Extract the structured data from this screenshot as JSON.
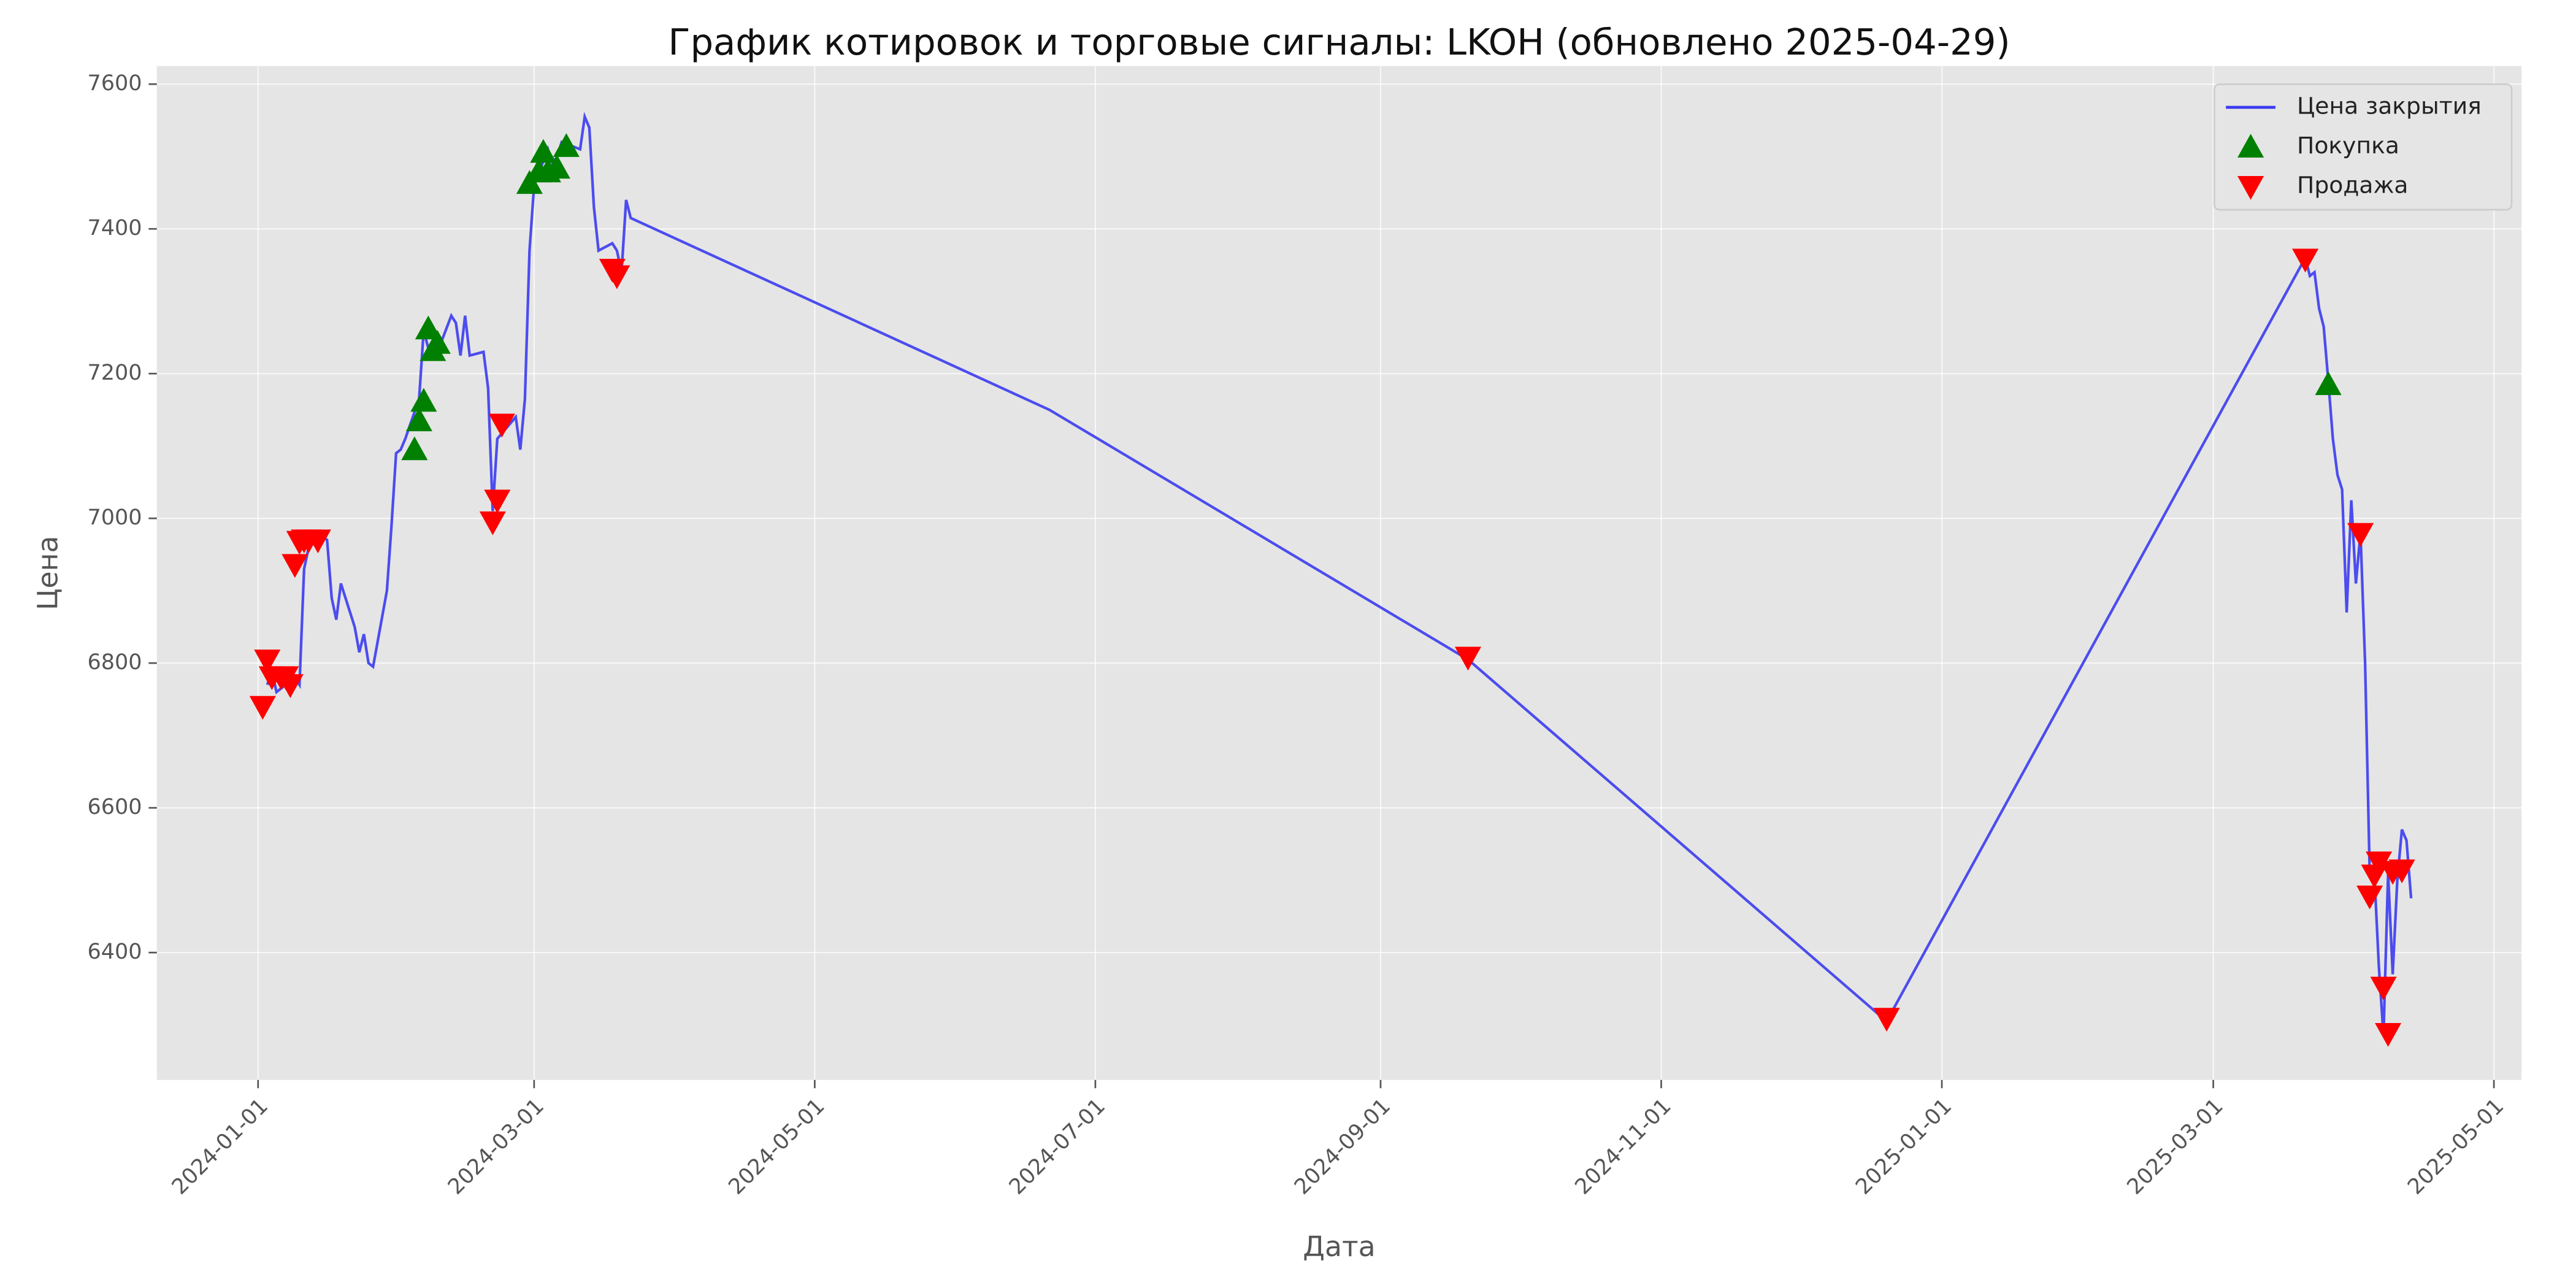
{
  "chart_data": {
    "type": "line",
    "title": "График котировок и торговые сигналы: LKOH (обновлено 2025-04-29)",
    "xlabel": "Дата",
    "ylabel": "Цена",
    "xlim": [
      "2023-12-10",
      "2025-05-07"
    ],
    "xticks": [
      "2024-01-01",
      "2024-03-01",
      "2024-05-01",
      "2024-07-01",
      "2024-09-01",
      "2024-11-01",
      "2025-01-01",
      "2025-03-01",
      "2025-05-01"
    ],
    "ylim": [
      6224,
      7625
    ],
    "yticks": [
      6400,
      6600,
      6800,
      7000,
      7200,
      7400,
      7600
    ],
    "grid": true,
    "legend": "upper right",
    "series": [
      {
        "name": "Цена закрытия",
        "type": "line",
        "color": "#3b3bf0",
        "x": [
          "2024-01-03",
          "2024-01-04",
          "2024-01-05",
          "2024-01-08",
          "2024-01-09",
          "2024-01-10",
          "2024-01-11",
          "2024-01-12",
          "2024-01-15",
          "2024-01-16",
          "2024-01-17",
          "2024-01-18",
          "2024-01-19",
          "2024-01-22",
          "2024-01-23",
          "2024-01-24",
          "2024-01-25",
          "2024-01-26",
          "2024-01-29",
          "2024-01-30",
          "2024-01-31",
          "2024-02-01",
          "2024-02-02",
          "2024-02-05",
          "2024-02-06",
          "2024-02-07",
          "2024-02-08",
          "2024-02-09",
          "2024-02-12",
          "2024-02-13",
          "2024-02-14",
          "2024-02-15",
          "2024-02-16",
          "2024-02-19",
          "2024-02-20",
          "2024-02-21",
          "2024-02-22",
          "2024-02-26",
          "2024-02-27",
          "2024-02-28",
          "2024-02-29",
          "2024-03-01",
          "2024-03-04",
          "2024-03-05",
          "2024-03-06",
          "2024-03-07",
          "2024-03-11",
          "2024-03-12",
          "2024-03-13",
          "2024-03-14",
          "2024-03-15",
          "2024-03-18",
          "2024-03-19",
          "2024-03-20",
          "2024-03-21",
          "2024-03-22",
          "2024-06-21",
          "2024-09-20",
          "2024-12-20",
          "2025-03-21",
          "2025-03-22",
          "2025-03-23",
          "2025-03-24",
          "2025-03-25",
          "2025-03-26",
          "2025-03-27",
          "2025-03-28",
          "2025-03-29",
          "2025-03-30",
          "2025-03-31",
          "2025-04-01",
          "2025-04-02",
          "2025-04-03",
          "2025-04-04",
          "2025-04-05",
          "2025-04-06",
          "2025-04-07",
          "2025-04-08",
          "2025-04-09",
          "2025-04-10",
          "2025-04-11",
          "2025-04-12",
          "2025-04-13"
        ],
        "values": [
          6770,
          6790,
          6760,
          6775,
          6780,
          6770,
          6930,
          6960,
          6975,
          6970,
          6890,
          6860,
          6910,
          6850,
          6815,
          6840,
          6800,
          6795,
          6900,
          6990,
          7090,
          7095,
          7110,
          7165,
          7260,
          7235,
          7245,
          7230,
          7280,
          7270,
          7225,
          7280,
          7225,
          7230,
          7180,
          7010,
          7110,
          7140,
          7095,
          7165,
          7370,
          7460,
          7510,
          7490,
          7500,
          7520,
          7510,
          7555,
          7540,
          7430,
          7370,
          7380,
          7370,
          7340,
          7440,
          7415,
          7150,
          6805,
          6305,
          7360,
          7335,
          7340,
          7290,
          7265,
          7190,
          7110,
          7060,
          7040,
          6870,
          7025,
          6910,
          6980,
          6800,
          6510,
          6510,
          6380,
          6285,
          6510,
          6370,
          6500,
          6570,
          6555,
          6475
        ]
      },
      {
        "name": "Покупка",
        "type": "scatter",
        "marker": "up",
        "color": "#008000",
        "x": [
          "2024-02-04",
          "2024-02-05",
          "2024-02-06",
          "2024-02-07",
          "2024-02-08",
          "2024-02-09",
          "2024-02-29",
          "2024-03-02",
          "2024-03-03",
          "2024-03-04",
          "2024-03-06",
          "2024-03-08",
          "2025-03-26"
        ],
        "values": [
          7095,
          7135,
          7162,
          7262,
          7232,
          7242,
          7463,
          7479,
          7506,
          7479,
          7484,
          7514,
          7185
        ]
      },
      {
        "name": "Продажа",
        "type": "scatter",
        "marker": "down",
        "color": "#ff0000",
        "x": [
          "2024-01-02",
          "2024-01-03",
          "2024-01-04",
          "2024-01-06",
          "2024-01-07",
          "2024-01-08",
          "2024-01-09",
          "2024-01-10",
          "2024-01-11",
          "2024-01-12",
          "2024-01-14",
          "2024-02-21",
          "2024-02-22",
          "2024-02-23",
          "2024-03-18",
          "2024-03-19",
          "2024-09-20",
          "2024-12-20",
          "2025-03-21",
          "2025-04-02",
          "2025-04-04",
          "2025-04-05",
          "2025-04-06",
          "2025-04-07",
          "2025-04-08",
          "2025-04-09",
          "2025-04-11"
        ],
        "values": [
          6740,
          6804,
          6781,
          6781,
          6781,
          6770,
          6936,
          6968,
          6970,
          6970,
          6970,
          6995,
          7025,
          7130,
          7344,
          7335,
          6808,
          6309,
          7358,
          6979,
          6478,
          6507,
          6525,
          6352,
          6288,
          6512,
          6514
        ]
      }
    ]
  }
}
